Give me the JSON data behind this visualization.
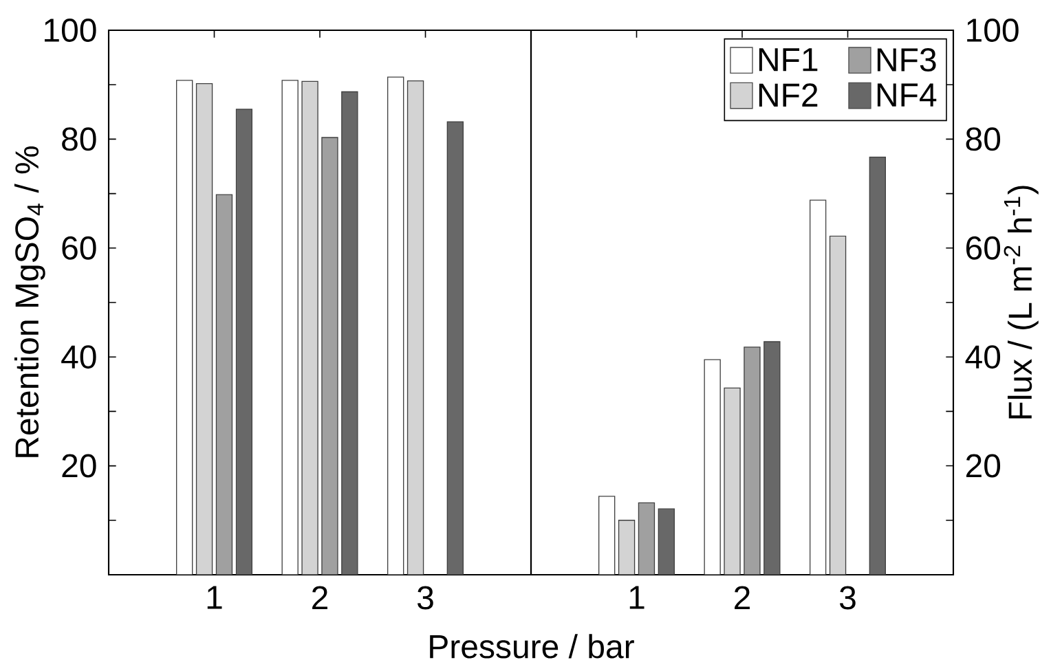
{
  "chart_data": [
    {
      "type": "bar",
      "categories": [
        "1",
        "2",
        "3"
      ],
      "xlabel": "Pressure / bar",
      "ylabel": "Retention MgSO$_{4}$ / %",
      "ylim": [
        0,
        100
      ],
      "yticks": [
        {
          "value": 10,
          "label": null
        },
        20,
        {
          "value": 30,
          "label": null
        },
        40,
        {
          "value": 50,
          "label": null
        },
        60,
        {
          "value": 70,
          "label": null
        },
        80,
        {
          "value": 90,
          "label": null
        },
        100
      ],
      "series": [
        {
          "color": "#ffffff",
          "values": [
            90.8,
            90.8,
            91.4
          ]
        },
        {
          "color": "#d3d3d3",
          "values": [
            90.2,
            90.6,
            90.7
          ]
        },
        {
          "color": "#a0a0a0",
          "values": [
            69.8,
            80.3,
            null
          ]
        },
        {
          "color": "#686868",
          "values": [
            85.5,
            88.7,
            83.2
          ]
        }
      ]
    },
    {
      "type": "bar",
      "categories": [
        "1",
        "2",
        "3"
      ],
      "ylabel": "Flux / (L m$^{-2}$ h$^{-1}$)",
      "ylim": [
        0,
        100
      ],
      "legend": "top right",
      "yticks": [
        {
          "value": 10,
          "label": null
        },
        20,
        {
          "value": 30,
          "label": null
        },
        40,
        {
          "value": 50,
          "label": null
        },
        60,
        {
          "value": 70,
          "label": null
        },
        80,
        {
          "value": 90,
          "label": null
        },
        100
      ],
      "series": [
        {
          "name": "NF1",
          "color": "#ffffff",
          "values": [
            14.4,
            39.5,
            68.8
          ]
        },
        {
          "name": "NF2",
          "color": "#d3d3d3",
          "values": [
            10.0,
            34.3,
            62.2
          ]
        },
        {
          "name": "NF3",
          "color": "#a0a0a0",
          "values": [
            13.2,
            41.8,
            null
          ]
        },
        {
          "name": "NF4",
          "color": "#686868",
          "values": [
            12.1,
            42.8,
            76.7
          ]
        }
      ]
    }
  ]
}
